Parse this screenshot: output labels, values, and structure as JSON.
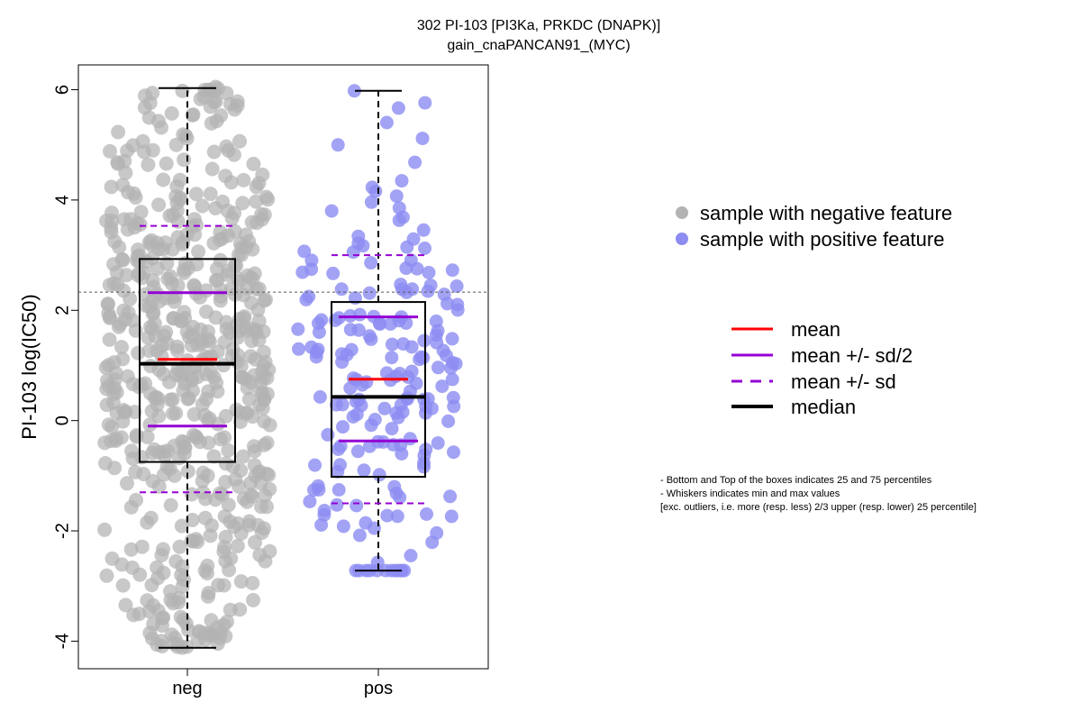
{
  "chart_data": {
    "type": "scatter",
    "title": "302 PI-103 [PI3Ka, PRKDC (DNAPK)]",
    "subtitle": "gain_cnaPANCAN91_(MYC)",
    "xlabel": "",
    "ylabel": "PI-103 log(IC50)",
    "ylim": [
      -4.5,
      6.45
    ],
    "yticks": [
      6,
      4,
      2,
      0,
      -2,
      -4
    ],
    "ytick_labels": [
      "6",
      "4",
      "2",
      "0",
      "-2",
      "-4"
    ],
    "categories": [
      "neg",
      "pos"
    ],
    "reference_line_y": 2.33,
    "series": [
      {
        "name": "sample with negative feature",
        "category": "neg",
        "color": "#b3b3b3",
        "box": {
          "q1": -0.75,
          "median": 1.03,
          "q3": 2.93,
          "whisker_low": -4.12,
          "whisker_high": 6.03
        },
        "mean": 1.11,
        "mean_plus_half_sd": 2.32,
        "mean_minus_half_sd": -0.1,
        "mean_plus_sd": 3.53,
        "mean_minus_sd": -1.3,
        "n_points": 600,
        "range": [
          -4.12,
          6.05
        ]
      },
      {
        "name": "sample with positive feature",
        "category": "pos",
        "color": "#8c8cf2",
        "box": {
          "q1": -1.02,
          "median": 0.43,
          "q3": 2.15,
          "whisker_low": -2.72,
          "whisker_high": 5.98
        },
        "mean": 0.75,
        "mean_plus_half_sd": 1.88,
        "mean_minus_half_sd": -0.37,
        "mean_plus_sd": 3.0,
        "mean_minus_sd": -1.5,
        "n_points": 200,
        "range": [
          -2.72,
          5.98
        ]
      }
    ],
    "legend_points": [
      {
        "label": "sample with negative feature",
        "color": "#b3b3b3"
      },
      {
        "label": "sample with positive feature",
        "color": "#8c8cf2"
      }
    ],
    "legend_lines": [
      {
        "label": "mean",
        "color": "#ff0000",
        "style": "solid"
      },
      {
        "label": "mean +/- sd/2",
        "color": "#9400d3",
        "style": "solid"
      },
      {
        "label": "mean +/- sd",
        "color": "#9400d3",
        "style": "dashed"
      },
      {
        "label": "median",
        "color": "#000000",
        "style": "solid"
      }
    ],
    "notes": [
      "- Bottom and Top of the boxes indicates 25 and 75 percentiles",
      "- Whiskers indicates min and max values",
      "[exc. outliers, i.e. more (resp. less) 2/3 upper (resp. lower) 25 percentile]"
    ]
  }
}
